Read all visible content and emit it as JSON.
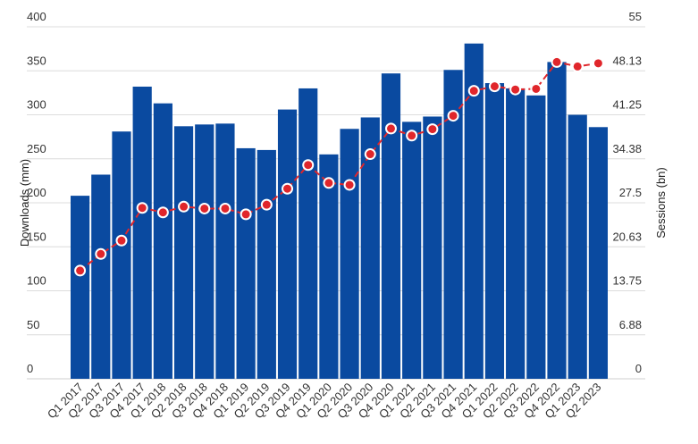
{
  "chart_data": {
    "type": "bar",
    "title": "",
    "categories": [
      "Q1 2017",
      "Q2 2017",
      "Q3 2017",
      "Q4 2017",
      "Q1 2018",
      "Q2 2018",
      "Q3 2018",
      "Q4 2018",
      "Q1 2019",
      "Q2 2019",
      "Q3 2019",
      "Q4 2019",
      "Q1 2020",
      "Q2 2020",
      "Q3 2020",
      "Q4 2020",
      "Q1 2021",
      "Q2 2021",
      "Q3 2021",
      "Q4 2021",
      "Q1 2022",
      "Q2 2022",
      "Q3 2022",
      "Q4 2022",
      "Q1 2023",
      "Q2 2023"
    ],
    "series": [
      {
        "name": "Downloads",
        "type": "bar",
        "axis": "left",
        "color": "#0a4aa0",
        "values": [
          208,
          232,
          281,
          332,
          313,
          287,
          289,
          290,
          262,
          260,
          306,
          330,
          255,
          284,
          297,
          347,
          292,
          298,
          351,
          381,
          336,
          330,
          322,
          360,
          300,
          286
        ]
      },
      {
        "name": "Sessions",
        "type": "line",
        "axis": "right",
        "color": "#e0262b",
        "values": [
          16.9,
          19.5,
          21.6,
          26.7,
          26.0,
          26.9,
          26.6,
          26.6,
          25.7,
          27.2,
          29.7,
          33.4,
          30.6,
          30.3,
          35.1,
          39.1,
          38.0,
          39.0,
          41.1,
          45.0,
          45.7,
          45.2,
          45.3,
          49.5,
          48.8,
          49.3
        ]
      }
    ],
    "ylabel": "Downloads (mm)",
    "y2label": "Sessions (bn)",
    "ylim": [
      0,
      400
    ],
    "y2lim": [
      0,
      55
    ],
    "yticks": [
      "0",
      "50",
      "100",
      "150",
      "200",
      "250",
      "300",
      "350",
      "400"
    ],
    "y2ticks": [
      "0",
      "6.88",
      "13.75",
      "20.63",
      "27.5",
      "34.38",
      "41.25",
      "48.13",
      "55"
    ],
    "grid": true,
    "legend": "none"
  }
}
